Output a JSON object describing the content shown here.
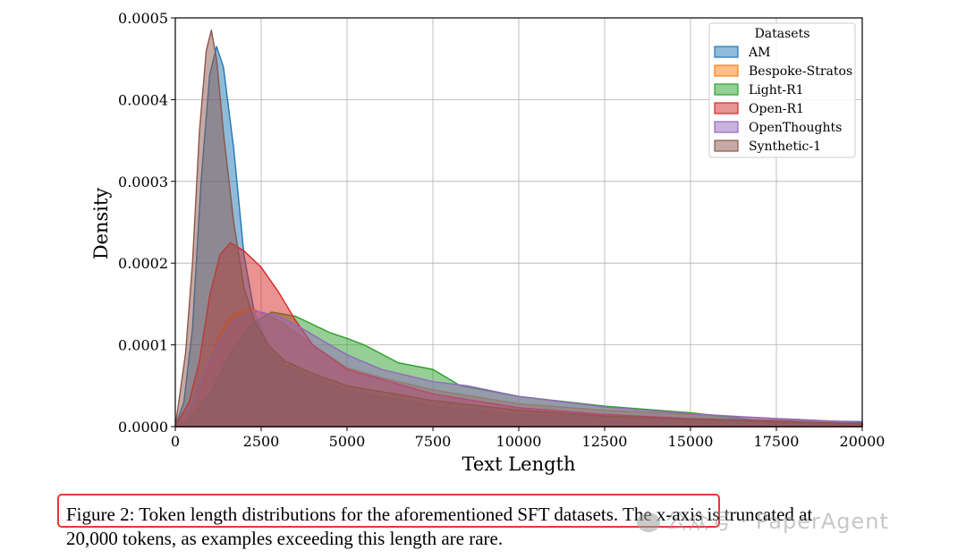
{
  "chart_data": {
    "type": "area",
    "xlabel": "Text Length",
    "ylabel": "Density",
    "xlim": [
      0,
      20000
    ],
    "ylim": [
      0,
      0.0005
    ],
    "x_ticks": [
      0,
      2500,
      5000,
      7500,
      10000,
      12500,
      15000,
      17500,
      20000
    ],
    "y_ticks": [
      0.0,
      0.0001,
      0.0002,
      0.0003,
      0.0004,
      0.0005
    ],
    "y_tick_labels": [
      "0.0000",
      "0.0001",
      "0.0002",
      "0.0003",
      "0.0004",
      "0.0005"
    ],
    "grid": true,
    "legend": {
      "title": "Datasets",
      "placement": "top-right"
    },
    "series": [
      {
        "name": "AM",
        "color": "#1f77b4",
        "points": [
          [
            0,
            0
          ],
          [
            250,
            3e-05
          ],
          [
            500,
            0.00012
          ],
          [
            750,
            0.0003
          ],
          [
            1000,
            0.00043
          ],
          [
            1200,
            0.000465
          ],
          [
            1400,
            0.00044
          ],
          [
            1700,
            0.00034
          ],
          [
            2000,
            0.00021
          ],
          [
            2300,
            0.00014
          ],
          [
            2700,
            0.0001
          ],
          [
            3200,
            7.5e-05
          ],
          [
            4000,
            6e-05
          ],
          [
            5000,
            4.5e-05
          ],
          [
            7500,
            2.5e-05
          ],
          [
            10000,
            1.5e-05
          ],
          [
            12500,
            1.2e-05
          ],
          [
            15000,
            1e-05
          ],
          [
            17500,
            8e-06
          ],
          [
            20000,
            6e-06
          ]
        ]
      },
      {
        "name": "Bespoke-Stratos",
        "color": "#ff7f0e",
        "points": [
          [
            0,
            0
          ],
          [
            500,
            2e-05
          ],
          [
            800,
            5e-05
          ],
          [
            1200,
            0.000105
          ],
          [
            1600,
            0.000135
          ],
          [
            2200,
            0.000145
          ],
          [
            3000,
            0.00013
          ],
          [
            3500,
            0.000115
          ],
          [
            4000,
            0.0001
          ],
          [
            5000,
            7.2e-05
          ],
          [
            6000,
            6e-05
          ],
          [
            7500,
            4.5e-05
          ],
          [
            10000,
            2.8e-05
          ],
          [
            12500,
            2e-05
          ],
          [
            15000,
            1.5e-05
          ],
          [
            17500,
            1e-05
          ],
          [
            20000,
            5e-06
          ]
        ]
      },
      {
        "name": "Light-R1",
        "color": "#2ca02c",
        "points": [
          [
            0,
            0
          ],
          [
            400,
            1e-05
          ],
          [
            1000,
            4e-05
          ],
          [
            1600,
            9e-05
          ],
          [
            2200,
            0.000125
          ],
          [
            2800,
            0.00014
          ],
          [
            3500,
            0.000135
          ],
          [
            4500,
            0.000115
          ],
          [
            5000,
            0.000108
          ],
          [
            5500,
            0.0001
          ],
          [
            6500,
            7.8e-05
          ],
          [
            7500,
            7e-05
          ],
          [
            8300,
            5e-05
          ],
          [
            10000,
            3.7e-05
          ],
          [
            12500,
            2.5e-05
          ],
          [
            15000,
            1.7e-05
          ],
          [
            16500,
            1e-05
          ],
          [
            17500,
            5e-06
          ],
          [
            20000,
            2e-06
          ]
        ]
      },
      {
        "name": "Open-R1",
        "color": "#d62728",
        "points": [
          [
            0,
            0
          ],
          [
            400,
            3e-05
          ],
          [
            700,
            8e-05
          ],
          [
            1000,
            0.00016
          ],
          [
            1300,
            0.00021
          ],
          [
            1600,
            0.000225
          ],
          [
            2000,
            0.000215
          ],
          [
            2500,
            0.000195
          ],
          [
            3000,
            0.000165
          ],
          [
            3500,
            0.00013
          ],
          [
            4000,
            0.0001
          ],
          [
            5000,
            7e-05
          ],
          [
            7500,
            4e-05
          ],
          [
            10000,
            2.3e-05
          ],
          [
            12500,
            1.5e-05
          ],
          [
            15000,
            1e-05
          ],
          [
            17500,
            7e-06
          ],
          [
            20000,
            3e-06
          ]
        ]
      },
      {
        "name": "OpenThoughts",
        "color": "#9467bd",
        "points": [
          [
            0,
            0
          ],
          [
            400,
            2e-05
          ],
          [
            800,
            6e-05
          ],
          [
            1200,
            0.0001
          ],
          [
            1700,
            0.00013
          ],
          [
            2300,
            0.000142
          ],
          [
            3000,
            0.000135
          ],
          [
            3700,
            0.00012
          ],
          [
            4500,
            0.0001
          ],
          [
            5000,
            8.8e-05
          ],
          [
            6000,
            7e-05
          ],
          [
            7500,
            5.5e-05
          ],
          [
            8500,
            5e-05
          ],
          [
            10000,
            3.7e-05
          ],
          [
            12500,
            2.4e-05
          ],
          [
            15000,
            1.6e-05
          ],
          [
            16500,
            1.2e-05
          ],
          [
            17500,
            1e-05
          ],
          [
            20000,
            5e-06
          ]
        ]
      },
      {
        "name": "Synthetic-1",
        "color": "#8c564b",
        "points": [
          [
            0,
            0
          ],
          [
            300,
            9e-05
          ],
          [
            500,
            0.0002
          ],
          [
            700,
            0.00036
          ],
          [
            900,
            0.00046
          ],
          [
            1050,
            0.000485
          ],
          [
            1200,
            0.00045
          ],
          [
            1400,
            0.00036
          ],
          [
            1700,
            0.00025
          ],
          [
            2000,
            0.00017
          ],
          [
            2300,
            0.00013
          ],
          [
            2700,
            0.0001
          ],
          [
            3200,
            8e-05
          ],
          [
            4000,
            6.5e-05
          ],
          [
            5000,
            5e-05
          ],
          [
            7500,
            3.2e-05
          ],
          [
            10000,
            2e-05
          ],
          [
            12500,
            1.3e-05
          ],
          [
            15000,
            9e-06
          ],
          [
            17500,
            6e-06
          ],
          [
            20000,
            4e-06
          ]
        ]
      }
    ]
  },
  "caption": {
    "line1": "Figure 2: Token length distributions for the aforementioned SFT datasets. The x-axis is truncated at",
    "line2": "20,000 tokens, as examples exceeding this length are rare."
  },
  "watermark": {
    "text": "公众号 · PaperAgent"
  }
}
